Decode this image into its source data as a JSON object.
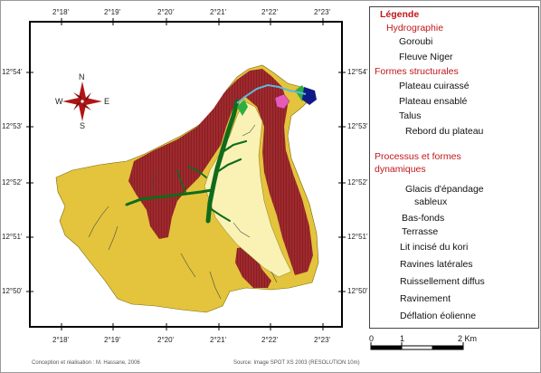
{
  "coords": {
    "lon_top": [
      "2°18'",
      "2°19'",
      "2°20'",
      "2°21'",
      "2°22'",
      "2°23'"
    ],
    "lon_bottom": [
      "2°18'",
      "2°19'",
      "2°20'",
      "2°21'",
      "2°22'",
      "2°23'"
    ],
    "lat_left": [
      "12°54'",
      "12°53'",
      "12°52'",
      "12°51'",
      "12°50'"
    ],
    "lat_right": [
      "12°54'",
      "12°53'",
      "12°52'",
      "12°51'",
      "12°50'"
    ]
  },
  "compass": {
    "n": "N",
    "e": "E",
    "s": "S",
    "w": "W"
  },
  "legend": {
    "title": "Légende",
    "section_hydro": "Hydrographie",
    "goroubi": "Goroubi",
    "niger": "Fleuve Niger",
    "section_struct": "Formes structurales",
    "plateau_cuirasse": "Plateau cuirassé",
    "plateau_ensable": "Plateau  ensablé",
    "talus": "Talus",
    "rebord": "Rebord du plateau",
    "section_proc_1": "Processus et formes",
    "section_proc_2": "dynamiques",
    "glacis_1": "Glacis d'épandage",
    "glacis_2": "sableux",
    "bas_fonds": "Bas-fonds",
    "terrasse": "Terrasse",
    "lit_incise": "Lit incisé du kori",
    "ravines": "Ravines latérales",
    "ruissellement": "Ruissellement diffus",
    "ravinement": "Ravinement",
    "deflation": "Déflation éolienne"
  },
  "scale": {
    "zero": "0",
    "one": "1",
    "two": "2 Km"
  },
  "credits": {
    "left": "Conception et réalisation : M. Hassane, 2006",
    "right": "Source: Image SPOT XS 2003 (RESOLUTION 10m)"
  },
  "colors": {
    "plateau_cuirasse": "#a0292d",
    "plateau_ensable": "#e3c43c",
    "glacis": "#faf2b4",
    "bas_fonds": "#0f6b1d",
    "terrasse": "#2fae42",
    "talus": "#e65ab8",
    "goroubi": "#8fd3ea",
    "niger": "#101a86"
  }
}
